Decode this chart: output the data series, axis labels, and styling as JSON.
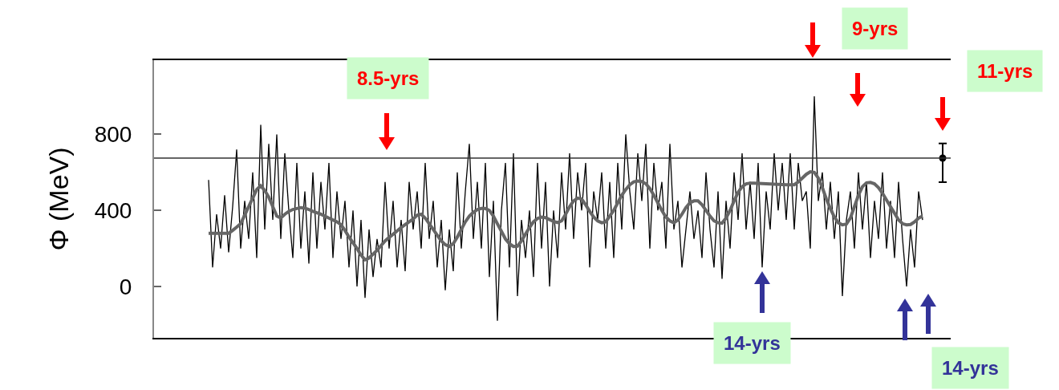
{
  "chart_data": {
    "type": "line",
    "ylabel": "Φ (MeV)",
    "categories": [
      null,
      null,
      null,
      null,
      null,
      null,
      null,
      null,
      null,
      null,
      null,
      null,
      null,
      null,
      null,
      null,
      null,
      null,
      null,
      null,
      null,
      null,
      null,
      null,
      null,
      null,
      null,
      null,
      null,
      null,
      null,
      null,
      null,
      null,
      null,
      null,
      null,
      null,
      null,
      null,
      null,
      null,
      null,
      null,
      null,
      null,
      null,
      null,
      null,
      null,
      null,
      null,
      null,
      null,
      null,
      null,
      null,
      null,
      null,
      null,
      null,
      null,
      null,
      null,
      null,
      null,
      null,
      null,
      null,
      null,
      null,
      null,
      null,
      null,
      null,
      null,
      null,
      null,
      null,
      null,
      null,
      null,
      null,
      null,
      null,
      null,
      null,
      null,
      null,
      null,
      null,
      null,
      null,
      null,
      null,
      null,
      null,
      null,
      null,
      null,
      null,
      null,
      null,
      null,
      null,
      null,
      null,
      null,
      null,
      null,
      null,
      null,
      null,
      null,
      null,
      null,
      null,
      null,
      null,
      null,
      null,
      null,
      null,
      null,
      null,
      null,
      null,
      null,
      null,
      null,
      null,
      null,
      null,
      null,
      null,
      null,
      null,
      null,
      null,
      null,
      null,
      null,
      null,
      null,
      null,
      null,
      null,
      null,
      null,
      null,
      null,
      null,
      null,
      null,
      null,
      null,
      null,
      null,
      null,
      null,
      null,
      null,
      null,
      null,
      null,
      null,
      null,
      null,
      null,
      null,
      null,
      null,
      null,
      null,
      null,
      null,
      null,
      null,
      null,
      null,
      null,
      null,
      null,
      null,
      null
    ],
    "series": [
      {
        "color": "#000000",
        "line_style": "solid",
        "values": [
          560,
          100,
          380,
          200,
          480,
          180,
          420,
          720,
          200,
          450,
          250,
          600,
          150,
          850,
          300,
          750,
          350,
          800,
          250,
          700,
          400,
          150,
          650,
          200,
          500,
          120,
          600,
          200,
          550,
          300,
          650,
          150,
          500,
          250,
          450,
          100,
          400,
          0,
          350,
          -60,
          300,
          50,
          250,
          100,
          550,
          200,
          450,
          100,
          350,
          80,
          550,
          300,
          500,
          200,
          650,
          250,
          450,
          100,
          350,
          -20,
          300,
          80,
          600,
          200,
          500,
          750,
          250,
          550,
          200,
          650,
          50,
          450,
          -180,
          400,
          650,
          100,
          700,
          -50,
          350,
          150,
          400,
          50,
          650,
          200,
          550,
          0,
          400,
          150,
          600,
          300,
          700,
          250,
          600,
          400,
          650,
          100,
          500,
          350,
          600,
          200,
          550,
          150,
          650,
          300,
          800,
          500,
          300,
          700,
          450,
          750,
          200,
          650,
          400,
          550,
          200,
          750,
          300,
          450,
          100,
          300,
          500,
          250,
          400,
          150,
          600,
          300,
          100,
          500,
          40,
          450,
          200,
          600,
          350,
          700,
          300,
          550,
          250,
          650,
          100,
          500,
          300,
          700,
          400,
          650,
          350,
          700,
          300,
          650,
          450,
          500,
          200,
          1000,
          450,
          600,
          300,
          550,
          250,
          500,
          -50,
          350,
          500,
          200,
          600,
          300,
          550,
          150,
          450,
          250,
          600,
          200,
          450,
          150,
          550,
          250,
          0,
          300,
          100,
          500,
          350,
          null,
          null,
          null,
          null,
          null,
          null
        ]
      },
      {
        "color": "#666666",
        "line_style": "solid",
        "values": [
          280,
          280,
          280,
          280,
          280,
          280,
          295,
          312,
          330,
          375,
          420,
          465,
          510,
          530,
          505,
          470,
          420,
          370,
          360,
          380,
          395,
          405,
          410,
          415,
          412,
          405,
          395,
          388,
          380,
          370,
          360,
          350,
          340,
          325,
          295,
          260,
          230,
          200,
          165,
          140,
          150,
          170,
          190,
          215,
          240,
          258,
          275,
          292,
          310,
          325,
          340,
          355,
          375,
          380,
          360,
          330,
          300,
          270,
          240,
          220,
          210,
          225,
          260,
          300,
          340,
          370,
          390,
          405,
          410,
          410,
          400,
          370,
          330,
          290,
          250,
          225,
          210,
          212,
          240,
          275,
          310,
          340,
          358,
          365,
          362,
          352,
          342,
          336,
          345,
          380,
          420,
          450,
          465,
          460,
          430,
          395,
          365,
          345,
          335,
          340,
          370,
          400,
          440,
          480,
          510,
          535,
          550,
          555,
          552,
          540,
          515,
          480,
          440,
          400,
          365,
          345,
          335,
          350,
          380,
          415,
          440,
          450,
          450,
          430,
          400,
          370,
          345,
          335,
          333,
          360,
          400,
          450,
          495,
          525,
          540,
          543,
          543,
          542,
          541,
          540,
          539,
          538,
          537,
          536,
          535,
          535,
          535,
          550,
          570,
          590,
          603,
          600,
          570,
          520,
          460,
          410,
          365,
          335,
          324,
          328,
          360,
          420,
          480,
          525,
          545,
          547,
          540,
          520,
          490,
          455,
          420,
          385,
          350,
          330,
          324,
          326,
          340,
          360,
          370,
          null,
          null,
          null,
          null,
          null,
          null
        ]
      },
      {
        "type": "scatter",
        "color": "#000000",
        "marker": "circle",
        "values": [
          null,
          null,
          null,
          null,
          null,
          null,
          null,
          null,
          null,
          null,
          null,
          null,
          null,
          null,
          null,
          null,
          null,
          null,
          null,
          null,
          null,
          null,
          null,
          null,
          null,
          null,
          null,
          null,
          null,
          null,
          null,
          null,
          null,
          null,
          null,
          null,
          null,
          null,
          null,
          null,
          null,
          null,
          null,
          null,
          null,
          null,
          null,
          null,
          null,
          null,
          null,
          null,
          null,
          null,
          null,
          null,
          null,
          null,
          null,
          null,
          null,
          null,
          null,
          null,
          null,
          null,
          null,
          null,
          null,
          null,
          null,
          null,
          null,
          null,
          null,
          null,
          null,
          null,
          null,
          null,
          null,
          null,
          null,
          null,
          null,
          null,
          null,
          null,
          null,
          null,
          null,
          null,
          null,
          null,
          null,
          null,
          null,
          null,
          null,
          null,
          null,
          null,
          null,
          null,
          null,
          null,
          null,
          null,
          null,
          null,
          null,
          null,
          null,
          null,
          null,
          null,
          null,
          null,
          null,
          null,
          null,
          null,
          null,
          null,
          null,
          null,
          null,
          null,
          null,
          null,
          null,
          null,
          null,
          null,
          null,
          null,
          null,
          null,
          null,
          null,
          null,
          null,
          null,
          null,
          null,
          null,
          null,
          null,
          null,
          null,
          null,
          null,
          null,
          null,
          null,
          null,
          null,
          null,
          null,
          null,
          null,
          null,
          null,
          null,
          null,
          null,
          null,
          null,
          null,
          null,
          null,
          null,
          null,
          null,
          null,
          null,
          null,
          null,
          null,
          null,
          null,
          null,
          null,
          675,
          null
        ],
        "errors": [
          null,
          null,
          null,
          null,
          null,
          null,
          null,
          null,
          null,
          null,
          null,
          null,
          null,
          null,
          null,
          null,
          null,
          null,
          null,
          null,
          null,
          null,
          null,
          null,
          null,
          null,
          null,
          null,
          null,
          null,
          null,
          null,
          null,
          null,
          null,
          null,
          null,
          null,
          null,
          null,
          null,
          null,
          null,
          null,
          null,
          null,
          null,
          null,
          null,
          null,
          null,
          null,
          null,
          null,
          null,
          null,
          null,
          null,
          null,
          null,
          null,
          null,
          null,
          null,
          null,
          null,
          null,
          null,
          null,
          null,
          null,
          null,
          null,
          null,
          null,
          null,
          null,
          null,
          null,
          null,
          null,
          null,
          null,
          null,
          null,
          null,
          null,
          null,
          null,
          null,
          null,
          null,
          null,
          null,
          null,
          null,
          null,
          null,
          null,
          null,
          null,
          null,
          null,
          null,
          null,
          null,
          null,
          null,
          null,
          null,
          null,
          null,
          null,
          null,
          null,
          null,
          null,
          null,
          null,
          null,
          null,
          null,
          null,
          null,
          null,
          null,
          null,
          null,
          null,
          null,
          null,
          null,
          null,
          null,
          null,
          null,
          null,
          null,
          null,
          null,
          null,
          null,
          null,
          null,
          null,
          null,
          null,
          null,
          null,
          null,
          null,
          null,
          null,
          null,
          null,
          null,
          null,
          null,
          null,
          null,
          null,
          null,
          null,
          null,
          null,
          null,
          null,
          null,
          null,
          null,
          null,
          null,
          null,
          null,
          null,
          null,
          null,
          null,
          null,
          null,
          null,
          null,
          null,
          [
            549,
            752
          ],
          null
        ]
      }
    ],
    "ylim": [
      -270,
      1190
    ],
    "yticks": [
      0,
      400,
      800
    ],
    "tick_labels": "y",
    "grid": false,
    "ref_lines": [
      {
        "axis": "y",
        "value": 675,
        "color": "#333333"
      }
    ],
    "annotations": [
      "8.5-yrs",
      "9-yrs",
      "11-yrs",
      "14-yrs",
      "14-yrs"
    ]
  }
}
